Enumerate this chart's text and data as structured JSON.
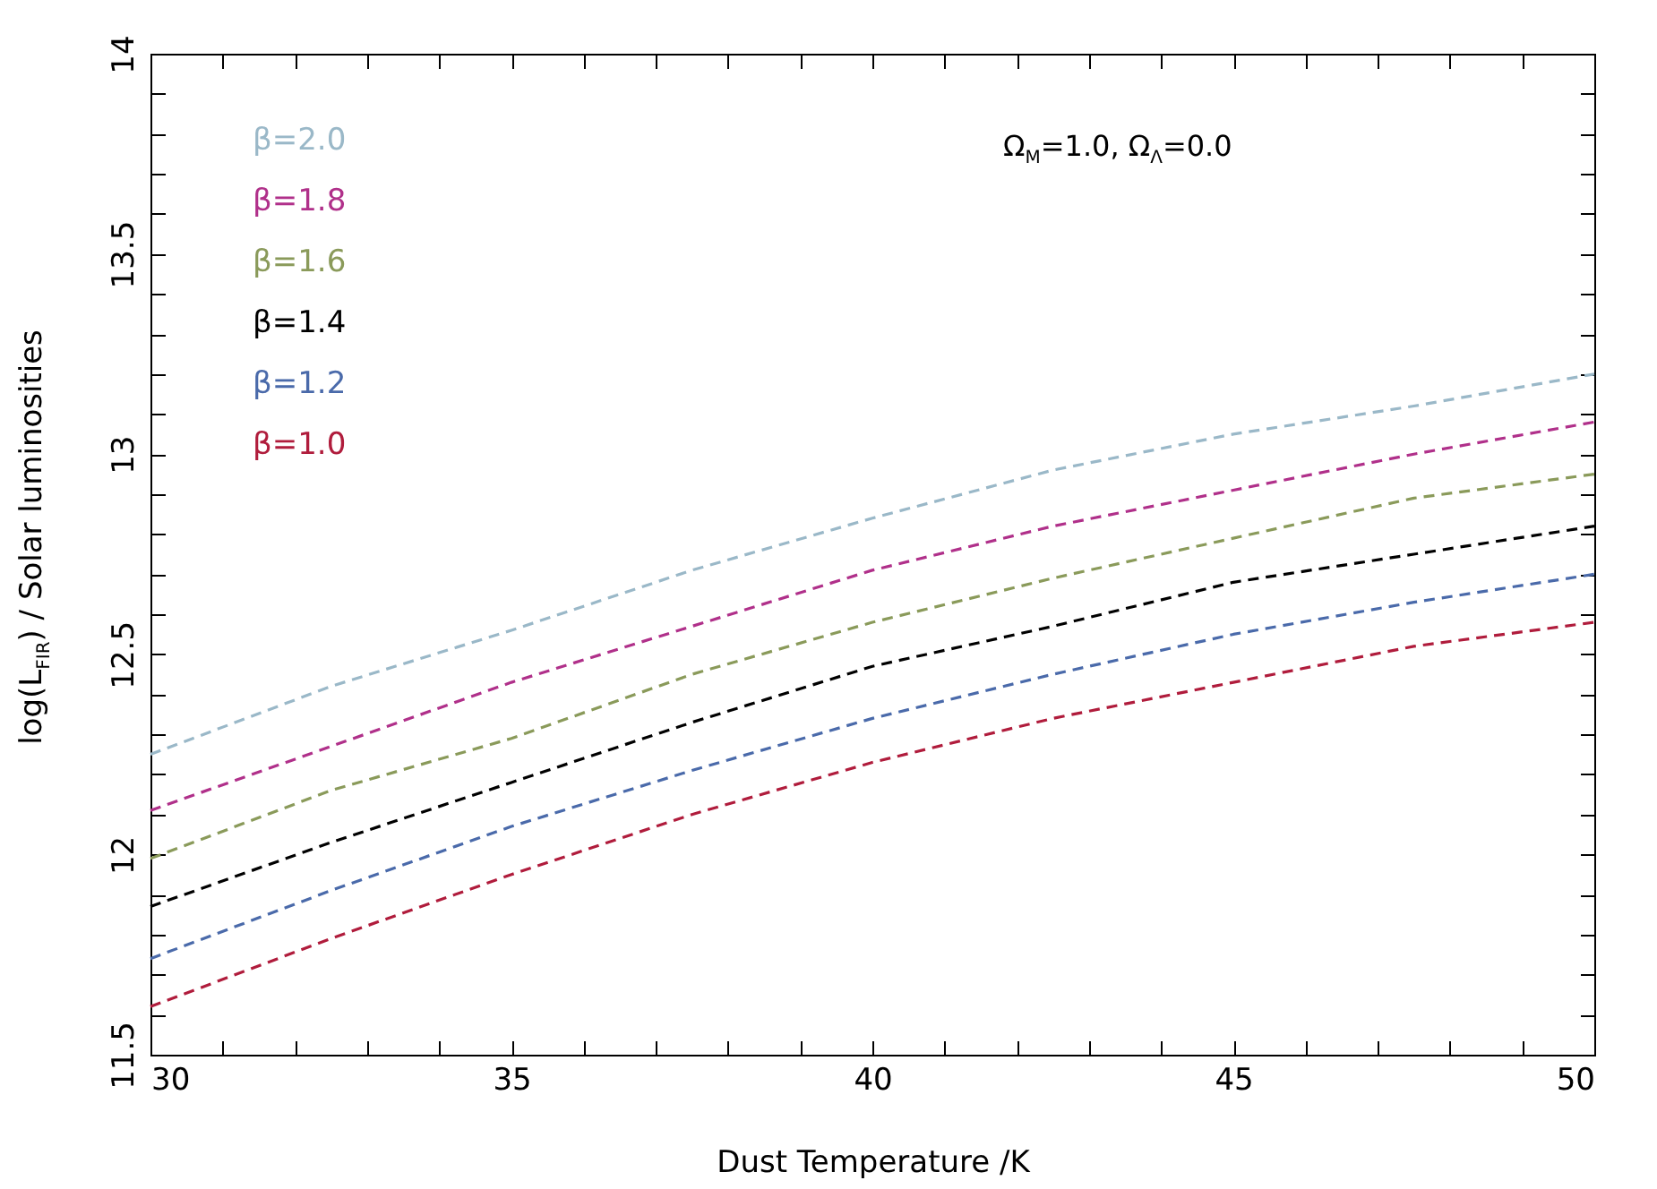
{
  "chart_data": {
    "type": "line",
    "xlabel": "Dust Temperature /K",
    "ylabel": "log(L$_{FIR}$) / Solar luminosities",
    "annotations": [
      "Ω$_{M}$=1.0,  Ω$_{Λ}$=0.0"
    ],
    "x": [
      30,
      32.5,
      35,
      37.5,
      40,
      42.5,
      45,
      47.5,
      50
    ],
    "series": [
      {
        "name": "β=2.0",
        "color": "#9ab8c8",
        "values": [
          12.25,
          12.42,
          12.56,
          12.71,
          12.84,
          12.96,
          13.05,
          13.12,
          13.2
        ]
      },
      {
        "name": "β=1.8",
        "color": "#b0308a",
        "values": [
          12.11,
          12.27,
          12.43,
          12.57,
          12.71,
          12.82,
          12.91,
          13.0,
          13.08
        ]
      },
      {
        "name": "β=1.6",
        "color": "#8a9a5a",
        "values": [
          11.99,
          12.16,
          12.29,
          12.45,
          12.58,
          12.69,
          12.79,
          12.89,
          12.95
        ]
      },
      {
        "name": "β=1.4",
        "color": "#000000",
        "values": [
          11.87,
          12.03,
          12.18,
          12.33,
          12.47,
          12.57,
          12.68,
          12.75,
          12.82
        ]
      },
      {
        "name": "β=1.2",
        "color": "#4a6aaa",
        "values": [
          11.74,
          11.91,
          12.07,
          12.21,
          12.34,
          12.45,
          12.55,
          12.63,
          12.7
        ]
      },
      {
        "name": "β=1.0",
        "color": "#b01c3c",
        "values": [
          11.62,
          11.79,
          11.95,
          12.1,
          12.23,
          12.34,
          12.43,
          12.52,
          12.58
        ]
      }
    ],
    "xlim": [
      30,
      50
    ],
    "xticks": [
      30,
      {
        "value": 31,
        "label": null
      },
      {
        "value": 32,
        "label": null
      },
      {
        "value": 33,
        "label": null
      },
      {
        "value": 34,
        "label": null
      },
      35,
      {
        "value": 36,
        "label": null
      },
      {
        "value": 37,
        "label": null
      },
      {
        "value": 38,
        "label": null
      },
      {
        "value": 39,
        "label": null
      },
      40,
      {
        "value": 41,
        "label": null
      },
      {
        "value": 42,
        "label": null
      },
      {
        "value": 43,
        "label": null
      },
      {
        "value": 44,
        "label": null
      },
      45,
      {
        "value": 46,
        "label": null
      },
      {
        "value": 47,
        "label": null
      },
      {
        "value": 48,
        "label": null
      },
      {
        "value": 49,
        "label": null
      },
      50
    ],
    "ylim": [
      11.5,
      14
    ],
    "yticks": [
      11.5,
      {
        "value": 11.6,
        "label": null
      },
      {
        "value": 11.7,
        "label": null
      },
      {
        "value": 11.8,
        "label": null
      },
      {
        "value": 11.9,
        "label": null
      },
      12,
      {
        "value": 12.1,
        "label": null
      },
      {
        "value": 12.2,
        "label": null
      },
      {
        "value": 12.3,
        "label": null
      },
      {
        "value": 12.4,
        "label": null
      },
      12.5,
      {
        "value": 12.6,
        "label": null
      },
      {
        "value": 12.7,
        "label": null
      },
      {
        "value": 12.8,
        "label": null
      },
      {
        "value": 12.9,
        "label": null
      },
      13,
      {
        "value": 13.1,
        "label": null
      },
      {
        "value": 13.2,
        "label": null
      },
      {
        "value": 13.3,
        "label": null
      },
      {
        "value": 13.4,
        "label": null
      },
      13.5,
      {
        "value": 13.6,
        "label": null
      },
      {
        "value": 13.7,
        "label": null
      },
      {
        "value": 13.8,
        "label": null
      },
      {
        "value": 13.9,
        "label": null
      },
      14
    ],
    "legend": "top left",
    "grid": false,
    "marker": "none",
    "line_style": "dashed"
  }
}
